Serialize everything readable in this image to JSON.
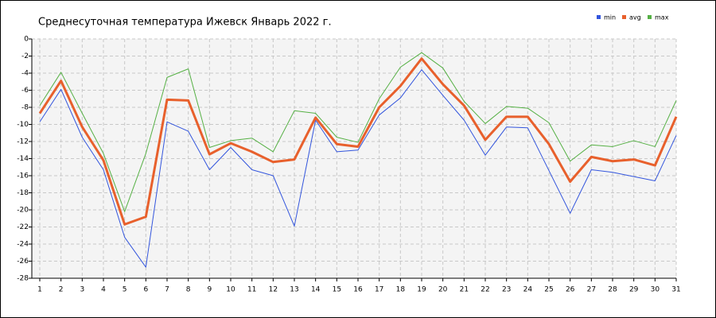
{
  "chart_data": {
    "type": "line",
    "title": "Среднесуточная температура Ижевск  Январь 2022 г.",
    "x": [
      1,
      2,
      3,
      4,
      5,
      6,
      7,
      8,
      9,
      10,
      11,
      12,
      13,
      14,
      15,
      16,
      17,
      18,
      19,
      20,
      21,
      22,
      23,
      24,
      25,
      26,
      27,
      28,
      29,
      30,
      31
    ],
    "xlim": [
      1,
      31
    ],
    "xticks": [
      1,
      2,
      3,
      4,
      5,
      6,
      7,
      8,
      9,
      10,
      11,
      12,
      13,
      14,
      15,
      16,
      17,
      18,
      19,
      20,
      21,
      22,
      23,
      24,
      25,
      26,
      27,
      28,
      29,
      30,
      31
    ],
    "ylim": [
      -28,
      0
    ],
    "yticks": [
      0,
      -2,
      -4,
      -6,
      -8,
      -10,
      -12,
      -14,
      -16,
      -18,
      -20,
      -22,
      -24,
      -26,
      -28
    ],
    "grid": true,
    "legend": "top-right",
    "series": [
      {
        "name": "min",
        "color": "#3355dd",
        "values": [
          -9.7,
          -5.9,
          -11.5,
          -15.3,
          -23.2,
          -26.7,
          -9.7,
          -10.8,
          -15.3,
          -12.7,
          -15.3,
          -16.0,
          -21.9,
          -9.5,
          -13.2,
          -13.0,
          -8.9,
          -6.9,
          -3.6,
          -6.6,
          -9.5,
          -13.6,
          -10.3,
          -10.4,
          -15.4,
          -20.4,
          -15.3,
          -15.6,
          -16.1,
          -16.6,
          -11.3
        ]
      },
      {
        "name": "avg",
        "color": "#e8602c",
        "values": [
          -8.7,
          -4.9,
          -10.3,
          -14.2,
          -21.7,
          -20.8,
          -7.1,
          -7.2,
          -13.5,
          -12.2,
          -13.2,
          -14.4,
          -14.1,
          -9.2,
          -12.3,
          -12.6,
          -8.0,
          -5.5,
          -2.3,
          -5.3,
          -7.8,
          -11.8,
          -9.1,
          -9.1,
          -12.3,
          -16.7,
          -13.8,
          -14.3,
          -14.1,
          -14.8,
          -9.1
        ]
      },
      {
        "name": "max",
        "color": "#55b044",
        "values": [
          -7.8,
          -3.9,
          -8.7,
          -13.4,
          -20.2,
          -13.4,
          -4.5,
          -3.5,
          -12.7,
          -11.9,
          -11.6,
          -13.2,
          -8.4,
          -8.7,
          -11.5,
          -12.1,
          -7.0,
          -3.3,
          -1.6,
          -3.4,
          -7.3,
          -9.9,
          -7.9,
          -8.1,
          -9.8,
          -14.3,
          -12.4,
          -12.6,
          -11.9,
          -12.6,
          -7.2
        ]
      }
    ]
  }
}
